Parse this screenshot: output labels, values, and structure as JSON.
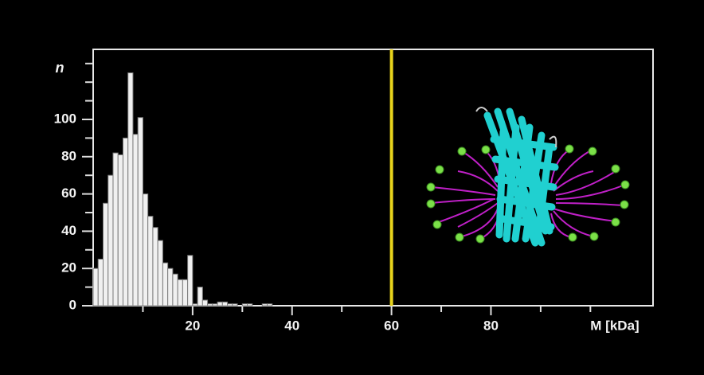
{
  "chart_data": {
    "type": "histogram",
    "ylabel": "n",
    "xlabel": "M [kDa]",
    "bins": [
      0,
      1,
      2,
      3,
      4,
      5,
      6,
      7,
      8,
      9,
      10,
      11,
      12,
      13,
      14,
      15,
      16,
      17,
      18,
      19,
      20,
      21,
      22,
      23,
      24,
      25,
      26,
      27,
      28,
      29,
      30,
      31,
      32,
      33,
      34,
      35,
      36
    ],
    "values": [
      20,
      25,
      55,
      70,
      82,
      81,
      90,
      125,
      92,
      101,
      60,
      48,
      42,
      35,
      23,
      20,
      17,
      14,
      14,
      27,
      1,
      10,
      3,
      1,
      1,
      2,
      2,
      1,
      1,
      0,
      1,
      1,
      0,
      0,
      1,
      1
    ],
    "color": "#f0f0f0",
    "edgecolor": "#7a7a7a",
    "xlim": [
      0,
      112.6
    ],
    "ylim": [
      0,
      137.6
    ],
    "xticks": [
      20,
      40,
      60,
      80
    ],
    "yticks": [
      0,
      20,
      40,
      60,
      80,
      100
    ],
    "xminorticks": [
      10,
      30,
      50,
      70,
      90,
      100
    ],
    "yminorticks": [
      10,
      30,
      50,
      70,
      90,
      110,
      120,
      130
    ],
    "marker_line": {
      "x": 60,
      "color": "#e8d41c"
    }
  }
}
